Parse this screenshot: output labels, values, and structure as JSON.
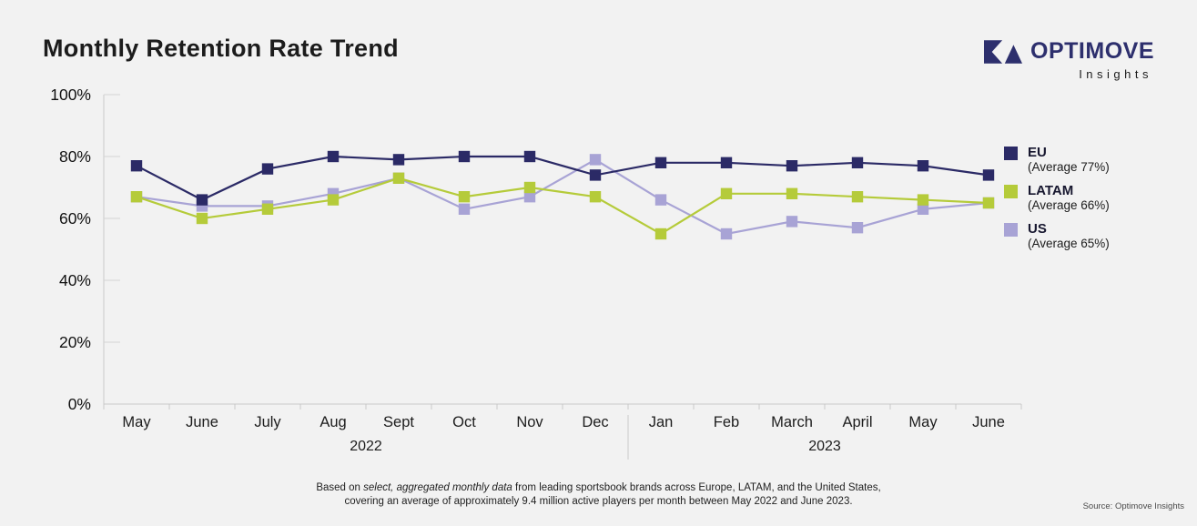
{
  "page": {
    "title": "Monthly Retention Rate Trend",
    "background": "#f2f2f2"
  },
  "logo": {
    "brand": "OPTIMOVE",
    "subtitle": "Insights",
    "color": "#2d2f6d"
  },
  "legend": [
    {
      "name": "EU",
      "average_label": "(Average 77%)",
      "color": "#2b2a66"
    },
    {
      "name": "LATAM",
      "average_label": "(Average 66%)",
      "color": "#b5cb3a"
    },
    {
      "name": "US",
      "average_label": "(Average 65%)",
      "color": "#a8a3d5"
    }
  ],
  "chart_data": {
    "type": "line",
    "title": "Monthly Retention Rate Trend",
    "x": [
      "May",
      "June",
      "July",
      "Aug",
      "Sept",
      "Oct",
      "Nov",
      "Dec",
      "Jan",
      "Feb",
      "March",
      "April",
      "May",
      "June"
    ],
    "year_groups": [
      {
        "label": "2022",
        "months": 8
      },
      {
        "label": "2023",
        "months": 6
      }
    ],
    "y_ticks": [
      "100%",
      "80%",
      "60%",
      "40%",
      "20%",
      "0%"
    ],
    "ylim": [
      0,
      100
    ],
    "grid": false,
    "legend_position": "right",
    "marker": "square",
    "series": [
      {
        "name": "EU",
        "color": "#2b2a66",
        "average": 77,
        "values": [
          77,
          66,
          76,
          80,
          79,
          80,
          80,
          74,
          78,
          78,
          77,
          78,
          77,
          74
        ]
      },
      {
        "name": "LATAM",
        "color": "#b5cb3a",
        "average": 66,
        "values": [
          67,
          60,
          63,
          66,
          73,
          67,
          70,
          67,
          55,
          68,
          68,
          67,
          66,
          65
        ]
      },
      {
        "name": "US",
        "color": "#a8a3d5",
        "average": 65,
        "values": [
          67,
          64,
          64,
          68,
          73,
          63,
          67,
          79,
          66,
          55,
          59,
          57,
          63,
          65
        ]
      }
    ]
  },
  "footnote": {
    "line1_prefix": "Based on ",
    "line1_italic": "select, aggregated monthly data",
    "line1_suffix": " from leading sportsbook brands across Europe, LATAM, and the United States,",
    "line2": "covering an average of approximately 9.4 million active players per month between May 2022 and June 2023."
  },
  "source": "Source: Optimove Insights"
}
